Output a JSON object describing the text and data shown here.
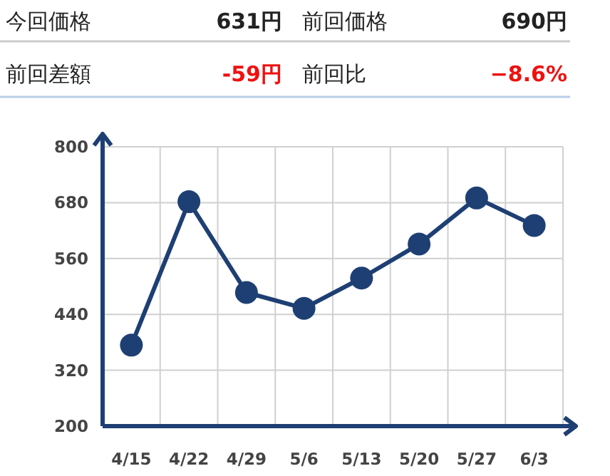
{
  "chart_data": {
    "type": "line",
    "categories": [
      "4/15",
      "4/22",
      "4/29",
      "5/6",
      "5/13",
      "5/20",
      "5/27",
      "6/3"
    ],
    "values": [
      374,
      682,
      487,
      453,
      518,
      591,
      690,
      631
    ],
    "color": "#1e3f73",
    "ylim": [
      200,
      800
    ],
    "yticks": [
      200,
      320,
      440,
      560,
      680,
      800
    ],
    "grid": true,
    "marker": "circle",
    "line_style": "solid",
    "annotations": [
      "今回価格",
      "631円",
      "前回価格",
      "690円",
      "前回差額",
      "-59円",
      "前回比",
      "−8.6%"
    ]
  }
}
